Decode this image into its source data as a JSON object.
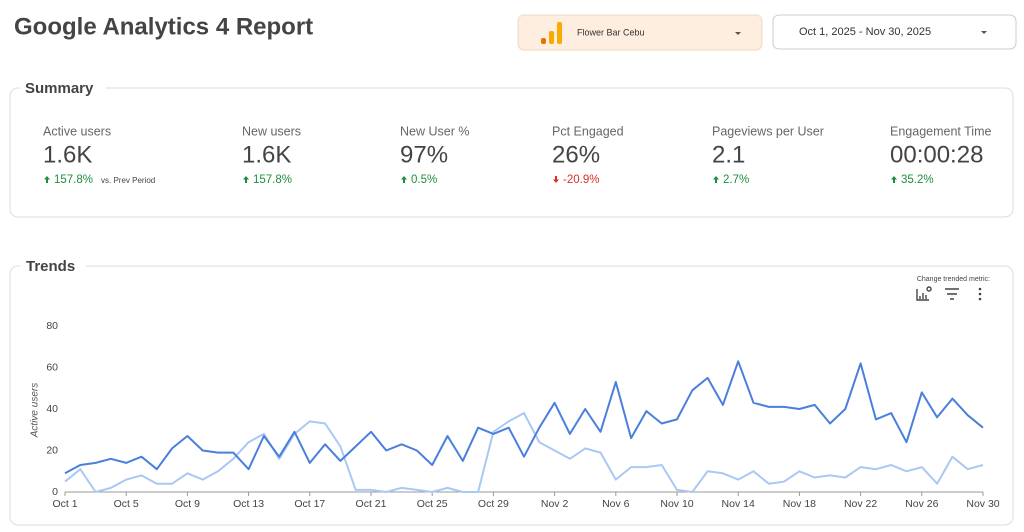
{
  "header": {
    "title": "Google Analytics 4 Report",
    "property": "Flower Bar Cebu",
    "date_range": "Oct 1, 2025 - Nov 30, 2025"
  },
  "summary": {
    "title": "Summary",
    "comparison_note": "vs. Prev Period",
    "metrics": [
      {
        "label": "Active users",
        "value": "1.6K",
        "change": "157.8%",
        "change_color": "#1e8e3e"
      },
      {
        "label": "New users",
        "value": "1.6K",
        "change": "157.8%",
        "change_color": "#1e8e3e"
      },
      {
        "label": "New User %",
        "value": "97%",
        "change": "0.5%",
        "change_color": "#1e8e3e"
      },
      {
        "label": "Pct Engaged",
        "value": "26%",
        "change": "-20.9%",
        "change_color": "#d93025"
      },
      {
        "label": "Pageviews per User",
        "value": "2.1",
        "change": "2.7%",
        "change_color": "#1e8e3e"
      },
      {
        "label": "Engagement Time",
        "value": "00:00:28",
        "change": "35.2%",
        "change_color": "#1e8e3e"
      }
    ]
  },
  "trends": {
    "title": "Trends",
    "control_label": "Change trended metric:"
  },
  "chart_data": {
    "type": "line",
    "y_label": "Active users",
    "categories": [
      "Oct 1",
      null,
      null,
      null,
      "Oct 5",
      null,
      null,
      null,
      "Oct 9",
      null,
      null,
      null,
      "Oct 13",
      null,
      null,
      null,
      "Oct 17",
      null,
      null,
      null,
      "Oct 21",
      null,
      null,
      null,
      "Oct 25",
      null,
      null,
      null,
      "Oct 29",
      null,
      null,
      null,
      "Nov 2",
      null,
      null,
      null,
      "Nov 6",
      null,
      null,
      null,
      "Nov 10",
      null,
      null,
      null,
      "Nov 14",
      null,
      null,
      null,
      "Nov 18",
      null,
      null,
      null,
      "Nov 22",
      null,
      null,
      null,
      "Nov 26",
      null,
      null,
      null,
      "Nov 30"
    ],
    "series": [
      {
        "color": "#4a7fdc",
        "values": [
          9,
          13,
          14,
          16,
          14,
          17,
          11,
          21,
          27,
          20,
          19,
          19,
          11,
          27,
          17,
          29,
          14,
          23,
          15,
          22,
          29,
          20,
          23,
          20,
          13,
          27,
          15,
          31,
          28,
          31,
          17,
          31,
          43,
          28,
          40,
          29,
          53,
          26,
          39,
          33,
          35,
          49,
          55,
          42,
          63,
          43,
          41,
          41,
          40,
          42,
          33,
          40,
          62,
          35,
          38,
          24,
          48,
          36,
          45,
          37,
          31
        ]
      },
      {
        "color": "#a9c8f3",
        "values": [
          5,
          11,
          0,
          2,
          6,
          8,
          4,
          4,
          9,
          6,
          10,
          16,
          24,
          28,
          16,
          28,
          34,
          33,
          22,
          1,
          1,
          0,
          2,
          1,
          0,
          2,
          0,
          0,
          29,
          34,
          38,
          24,
          20,
          16,
          21,
          19,
          6,
          12,
          12,
          13,
          1,
          0,
          10,
          9,
          6,
          10,
          4,
          5,
          10,
          7,
          8,
          7,
          12,
          11,
          13,
          10,
          12,
          4,
          17,
          11,
          13
        ]
      }
    ],
    "ylim": [
      0,
      80
    ],
    "yticks": [
      0,
      20,
      40,
      60,
      80
    ],
    "grid": false
  }
}
